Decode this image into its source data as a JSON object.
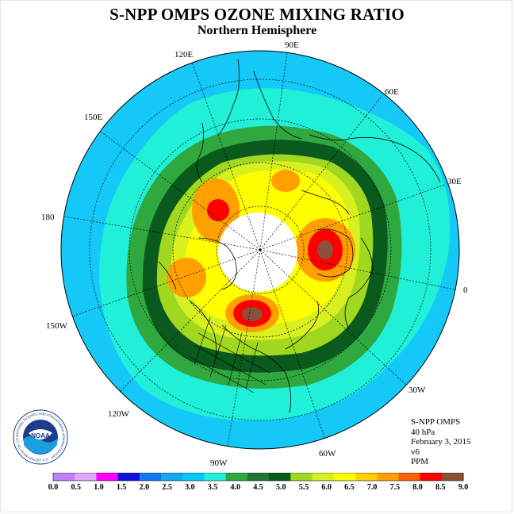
{
  "title": "S-NPP OMPS OZONE MIXING RATIO",
  "subtitle": "Northern Hemisphere",
  "logo": {
    "text": "NOAA",
    "ring_text": "NATIONAL OCEANIC AND ATMOSPHERIC ADMINISTRATION · U.S. DEPARTMENT OF COMMERCE"
  },
  "longitude_labels": {
    "e90": "90E",
    "e60": "60E",
    "e30": "30E",
    "zero": "0",
    "w30": "30W",
    "w60": "60W",
    "w90": "90W",
    "w120": "120W",
    "w150": "150W",
    "e180": "180",
    "e150": "150E",
    "e120": "120E"
  },
  "info": {
    "instrument": "S-NPP OMPS",
    "level": "40 hPa",
    "date": "February 3, 2015",
    "version": "v6",
    "units": "PPM"
  },
  "colorbar": {
    "ticks": [
      "0.0",
      "0.5",
      "1.0",
      "1.5",
      "2.0",
      "2.5",
      "3.0",
      "3.5",
      "4.0",
      "4.5",
      "5.0",
      "5.5",
      "6.0",
      "6.5",
      "7.0",
      "7.5",
      "8.0",
      "8.5",
      "9.0"
    ],
    "colors": [
      "#c080ff",
      "#e0a8ff",
      "#ff00ff",
      "#1010e0",
      "#1478f0",
      "#14a8f0",
      "#00c8f8",
      "#20f0d8",
      "#30a840",
      "#207830",
      "#0a5a1e",
      "#a0d820",
      "#d8f020",
      "#ffff00",
      "#ffd000",
      "#ffa000",
      "#ff6000",
      "#ff0000",
      "#8c5038"
    ]
  },
  "map_colors": {
    "ocean_blue": "#14c8f8",
    "cyan_band": "#20f0d8",
    "green_band": "#30a840",
    "dark_green_band": "#0a5a1e",
    "lime": "#a0d820",
    "yellow_green": "#d8f020",
    "yellow": "#ffff00",
    "orange": "#ffa000",
    "red": "#ff0000",
    "brown": "#8c5038",
    "polar_night": "#ffffff"
  }
}
